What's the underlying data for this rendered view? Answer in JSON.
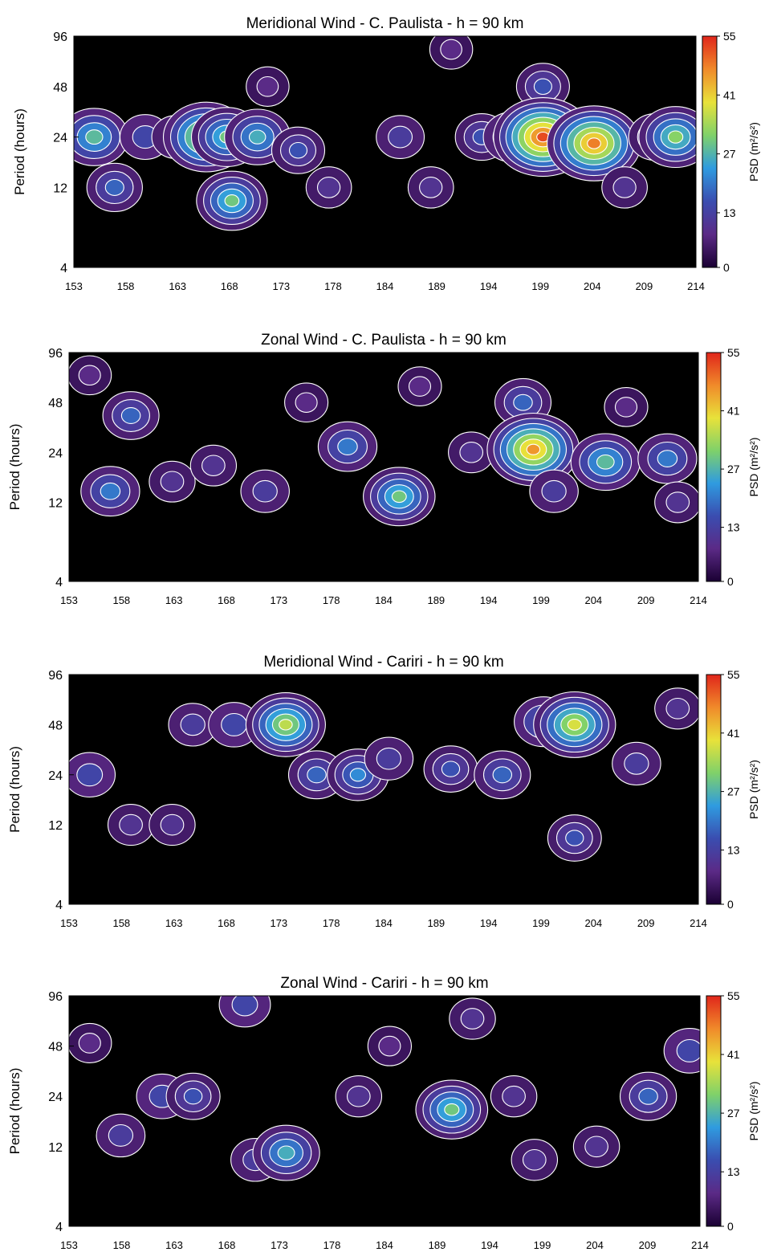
{
  "figure": {
    "background": "#ffffff",
    "plot_background": "#000000",
    "contour_line_color": "#ffffff"
  },
  "colormap": [
    "#1a0033",
    "#5b2a86",
    "#3a4db0",
    "#2f9be0",
    "#7fd16a",
    "#e8e23a",
    "#f08a2a",
    "#e0261b"
  ],
  "chart_data": [
    {
      "type": "heatmap",
      "title": "Meridional Wind - C. Paulista -  h = 90 km",
      "ylabel": "Period (hours)",
      "yticks": [
        "96",
        "48",
        "24",
        "12",
        "4"
      ],
      "yscale": "log",
      "ylim": [
        4,
        96
      ],
      "xticks": [
        "153",
        "158",
        "163",
        "168",
        "173",
        "178",
        "184",
        "189",
        "194",
        "199",
        "204",
        "209",
        "214"
      ],
      "xlim": [
        153,
        214
      ],
      "colorbar": {
        "label": "PSD  (m²/s²)",
        "ticks": [
          "55",
          "41",
          "27",
          "13",
          "0"
        ],
        "range": [
          0,
          55
        ]
      },
      "blobs": [
        {
          "x": 155,
          "y": 24,
          "v": 28
        },
        {
          "x": 157,
          "y": 12,
          "v": 18
        },
        {
          "x": 160,
          "y": 24,
          "v": 14
        },
        {
          "x": 163,
          "y": 24,
          "v": 12
        },
        {
          "x": 166,
          "y": 24,
          "v": 42
        },
        {
          "x": 168,
          "y": 24,
          "v": 30
        },
        {
          "x": 171,
          "y": 24,
          "v": 26
        },
        {
          "x": 168.5,
          "y": 10,
          "v": 30
        },
        {
          "x": 172,
          "y": 48,
          "v": 8
        },
        {
          "x": 175,
          "y": 20,
          "v": 16
        },
        {
          "x": 178,
          "y": 12,
          "v": 10
        },
        {
          "x": 185,
          "y": 24,
          "v": 12
        },
        {
          "x": 188,
          "y": 12,
          "v": 10
        },
        {
          "x": 190,
          "y": 80,
          "v": 8
        },
        {
          "x": 193,
          "y": 24,
          "v": 16
        },
        {
          "x": 196,
          "y": 24,
          "v": 20
        },
        {
          "x": 199,
          "y": 48,
          "v": 16
        },
        {
          "x": 199,
          "y": 24,
          "v": 52
        },
        {
          "x": 204,
          "y": 22,
          "v": 48
        },
        {
          "x": 207,
          "y": 12,
          "v": 10
        },
        {
          "x": 210,
          "y": 24,
          "v": 16
        },
        {
          "x": 212,
          "y": 24,
          "v": 32
        }
      ]
    },
    {
      "type": "heatmap",
      "title": "Zonal Wind - C. Paulista -  h = 90 km",
      "ylabel": "Period (hours)",
      "yticks": [
        "96",
        "48",
        "24",
        "12",
        "4"
      ],
      "yscale": "log",
      "ylim": [
        4,
        96
      ],
      "xticks": [
        "153",
        "158",
        "163",
        "168",
        "173",
        "178",
        "184",
        "189",
        "194",
        "199",
        "204",
        "209",
        "214"
      ],
      "xlim": [
        153,
        214
      ],
      "colorbar": {
        "label": "PSD  (m²/s²)",
        "ticks": [
          "55",
          "41",
          "27",
          "13",
          "0"
        ],
        "range": [
          0,
          55
        ]
      },
      "blobs": [
        {
          "x": 155,
          "y": 70,
          "v": 8
        },
        {
          "x": 159,
          "y": 40,
          "v": 18
        },
        {
          "x": 157,
          "y": 14,
          "v": 20
        },
        {
          "x": 163,
          "y": 16,
          "v": 10
        },
        {
          "x": 167,
          "y": 20,
          "v": 10
        },
        {
          "x": 172,
          "y": 14,
          "v": 12
        },
        {
          "x": 176,
          "y": 48,
          "v": 8
        },
        {
          "x": 180,
          "y": 26,
          "v": 20
        },
        {
          "x": 185,
          "y": 13,
          "v": 30
        },
        {
          "x": 187,
          "y": 60,
          "v": 8
        },
        {
          "x": 192,
          "y": 24,
          "v": 10
        },
        {
          "x": 197,
          "y": 48,
          "v": 18
        },
        {
          "x": 198,
          "y": 25,
          "v": 46
        },
        {
          "x": 200,
          "y": 14,
          "v": 12
        },
        {
          "x": 205,
          "y": 21,
          "v": 28
        },
        {
          "x": 207,
          "y": 45,
          "v": 8
        },
        {
          "x": 211,
          "y": 22,
          "v": 20
        },
        {
          "x": 212,
          "y": 12,
          "v": 10
        }
      ]
    },
    {
      "type": "heatmap",
      "title": "Meridional Wind - Cariri -  h = 90 km",
      "ylabel": "Period (hours)",
      "yticks": [
        "96",
        "48",
        "24",
        "12",
        "4"
      ],
      "yscale": "log",
      "ylim": [
        4,
        96
      ],
      "xticks": [
        "153",
        "158",
        "163",
        "168",
        "173",
        "178",
        "184",
        "189",
        "194",
        "199",
        "204",
        "209",
        "214"
      ],
      "xlim": [
        153,
        214
      ],
      "colorbar": {
        "label": "PSD  (m²/s²)",
        "ticks": [
          "55",
          "41",
          "27",
          "13",
          "0"
        ],
        "range": [
          0,
          55
        ]
      },
      "blobs": [
        {
          "x": 155,
          "y": 24,
          "v": 14
        },
        {
          "x": 159,
          "y": 12,
          "v": 10
        },
        {
          "x": 163,
          "y": 12,
          "v": 10
        },
        {
          "x": 165,
          "y": 48,
          "v": 12
        },
        {
          "x": 169,
          "y": 48,
          "v": 14
        },
        {
          "x": 174,
          "y": 48,
          "v": 36
        },
        {
          "x": 177,
          "y": 24,
          "v": 18
        },
        {
          "x": 181,
          "y": 24,
          "v": 22
        },
        {
          "x": 184,
          "y": 30,
          "v": 12
        },
        {
          "x": 190,
          "y": 26,
          "v": 16
        },
        {
          "x": 195,
          "y": 24,
          "v": 18
        },
        {
          "x": 199,
          "y": 50,
          "v": 20
        },
        {
          "x": 202,
          "y": 48,
          "v": 38
        },
        {
          "x": 202,
          "y": 10,
          "v": 16
        },
        {
          "x": 208,
          "y": 28,
          "v": 12
        },
        {
          "x": 212,
          "y": 60,
          "v": 10
        }
      ]
    },
    {
      "type": "heatmap",
      "title": "Zonal Wind - Cariri -  h = 90 km",
      "ylabel": "Period (hours)",
      "yticks": [
        "96",
        "48",
        "24",
        "12",
        "4"
      ],
      "yscale": "log",
      "ylim": [
        4,
        96
      ],
      "xticks": [
        "153",
        "158",
        "163",
        "168",
        "173",
        "178",
        "184",
        "189",
        "194",
        "199",
        "204",
        "209",
        "214"
      ],
      "xlim": [
        153,
        214
      ],
      "colorbar": {
        "label": "PSD  (m²/s²)",
        "ticks": [
          "55",
          "41",
          "27",
          "13",
          "0"
        ],
        "range": [
          0,
          55
        ]
      },
      "blobs": [
        {
          "x": 155,
          "y": 50,
          "v": 8
        },
        {
          "x": 158,
          "y": 14,
          "v": 12
        },
        {
          "x": 162,
          "y": 24,
          "v": 14
        },
        {
          "x": 165,
          "y": 24,
          "v": 16
        },
        {
          "x": 170,
          "y": 85,
          "v": 14
        },
        {
          "x": 171,
          "y": 10,
          "v": 12
        },
        {
          "x": 174,
          "y": 11,
          "v": 26
        },
        {
          "x": 181,
          "y": 24,
          "v": 10
        },
        {
          "x": 184,
          "y": 48,
          "v": 8
        },
        {
          "x": 190,
          "y": 20,
          "v": 30
        },
        {
          "x": 192,
          "y": 70,
          "v": 10
        },
        {
          "x": 196,
          "y": 24,
          "v": 10
        },
        {
          "x": 198,
          "y": 10,
          "v": 10
        },
        {
          "x": 204,
          "y": 12,
          "v": 10
        },
        {
          "x": 209,
          "y": 24,
          "v": 18
        },
        {
          "x": 213,
          "y": 45,
          "v": 14
        }
      ]
    }
  ]
}
